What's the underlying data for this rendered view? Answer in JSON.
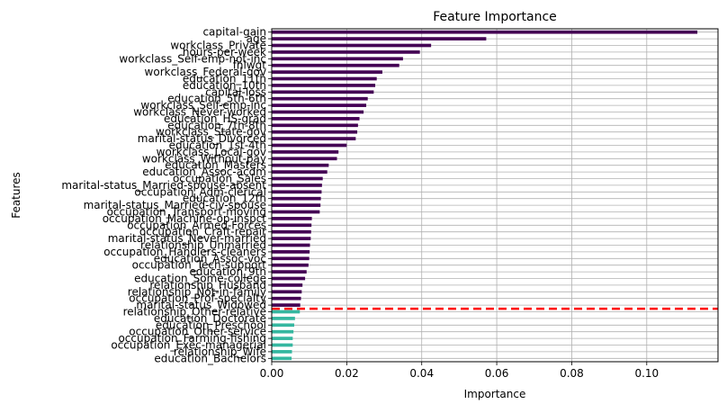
{
  "chart_data": {
    "type": "bar",
    "orientation": "horizontal",
    "title": "Feature Importance",
    "xlabel": "Importance",
    "ylabel": "Features",
    "xlim": [
      0,
      0.119
    ],
    "xticks": [
      "0.00",
      "0.02",
      "0.04",
      "0.06",
      "0.08",
      "0.10"
    ],
    "grid": true,
    "threshold_after_index": 41,
    "colors": {
      "upper_bar": "#440154",
      "lower_bar": "#35b7a0",
      "threshold_line": "#ff0000",
      "grid": "#b0b0b0"
    },
    "categories": [
      "capital-gain",
      "age",
      "workclass_Private",
      "hours-per-week",
      "workclass_Self-emp-not-inc",
      "fnlwgt",
      "workclass_Federal-gov",
      "education_11th",
      "education_10th",
      "capital-loss",
      "education_5th-6th",
      "workclass_Self-emp-inc",
      "workclass_Never-worked",
      "education_HS-grad",
      "education_7th-8th",
      "workclass_State-gov",
      "marital-status_Divorced",
      "education_1st-4th",
      "workclass_Local-gov",
      "workclass_Without-pay",
      "education_Masters",
      "education_Assoc-acdm",
      "occupation_Sales",
      "marital-status_Married-spouse-absent",
      "occupation_Adm-clerical",
      "education_12th",
      "marital-status_Married-civ-spouse",
      "occupation_Transport-moving",
      "occupation_Machine-op-inspct",
      "occupation_Armed-Forces",
      "occupation_Craft-repair",
      "marital-status_Never-married",
      "relationship_Unmarried",
      "occupation_Handlers-cleaners",
      "education_Assoc-voc",
      "occupation_Tech-support",
      "education_9th",
      "education_Some-college",
      "relationship_Husband",
      "relationship_Not-in-family",
      "occupation_Prof-specialty",
      "marital-status_Widowed",
      "relationship_Other-relative",
      "education_Doctorate",
      "education_Preschool",
      "occupation_Other-service",
      "occupation_Farming-fishing",
      "occupation_Exec-managerial",
      "relationship_Wife",
      "education_Bachelors"
    ],
    "values": [
      0.1135,
      0.0572,
      0.0425,
      0.0395,
      0.035,
      0.034,
      0.0295,
      0.028,
      0.0276,
      0.0272,
      0.0256,
      0.0252,
      0.0245,
      0.0234,
      0.023,
      0.0228,
      0.0224,
      0.02,
      0.0178,
      0.0174,
      0.0152,
      0.0148,
      0.0136,
      0.0134,
      0.0133,
      0.0131,
      0.013,
      0.0128,
      0.0107,
      0.0106,
      0.0105,
      0.0104,
      0.0102,
      0.0101,
      0.01,
      0.0098,
      0.0093,
      0.0089,
      0.0082,
      0.008,
      0.0078,
      0.0076,
      0.0075,
      0.0062,
      0.006,
      0.0058,
      0.0056,
      0.0056,
      0.0054,
      0.0053
    ]
  }
}
